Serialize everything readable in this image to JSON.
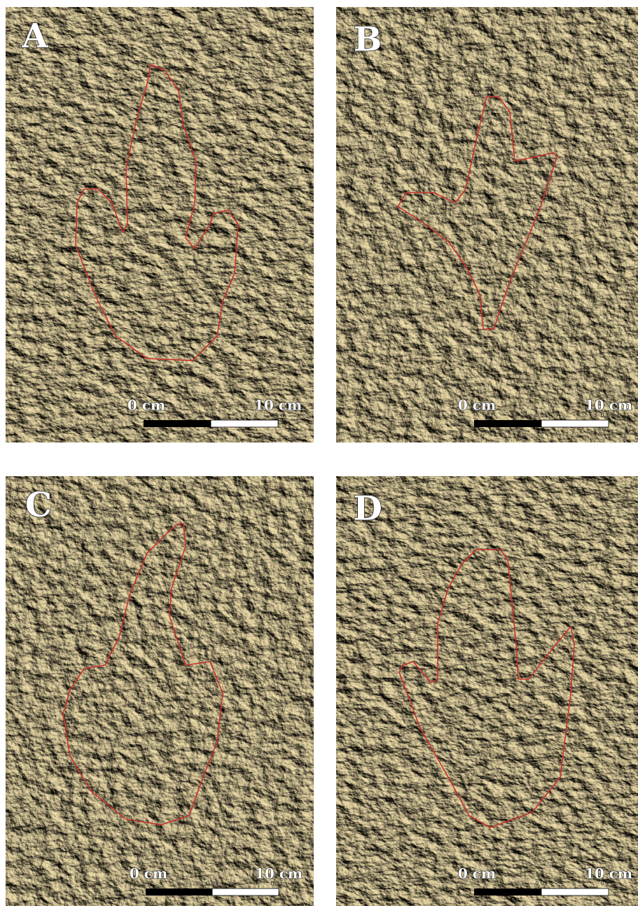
{
  "panels": [
    {
      "label": "A",
      "scale_start": "0 cm",
      "scale_end": "10 cm",
      "tick_mid": "0.05",
      "tick_end": "0.1 m"
    },
    {
      "label": "B",
      "scale_start": "0 cm",
      "scale_end": "10 cm",
      "tick_mid": "0.05",
      "tick_end": "0.1 m"
    },
    {
      "label": "C",
      "scale_start": "0 cm",
      "scale_end": "10 cm",
      "tick_mid": "0.05",
      "tick_end": "0.1 m"
    },
    {
      "label": "D",
      "scale_start": "0 cm",
      "scale_end": "10 cm",
      "tick_mid": "0.05",
      "tick_end": "0.1 m"
    }
  ]
}
